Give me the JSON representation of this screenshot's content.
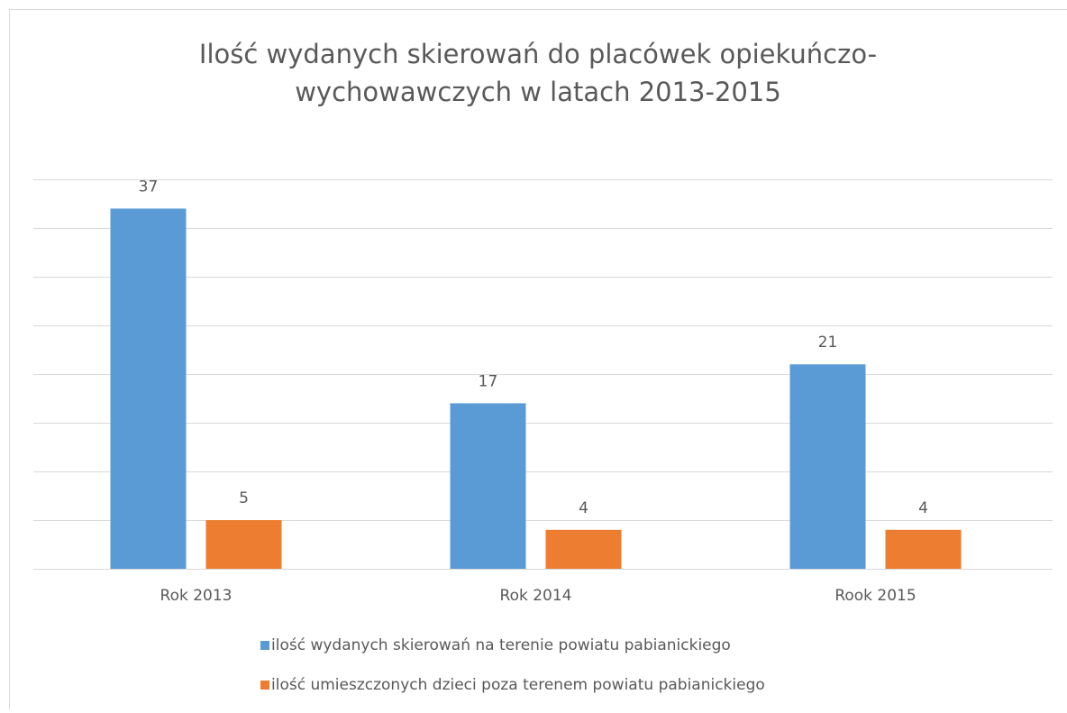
{
  "chart_data": {
    "type": "bar",
    "title": [
      "Ilość wydanych skierowań do placówek opiekuńczo-",
      "wychowawczych w latach 2013-2015"
    ],
    "categories": [
      "Rok 2013",
      "Rok 2014",
      "Rook 2015"
    ],
    "series": [
      {
        "name": "ilość wydanych skierowań na terenie powiatu pabianickiego",
        "color": "#5b9bd5",
        "values": [
          37,
          17,
          21
        ]
      },
      {
        "name": "ilość umieszczonych dzieci poza terenem powiatu pabianickiego",
        "color": "#ed7d31",
        "values": [
          5,
          4,
          4
        ]
      }
    ],
    "ylim": [
      0,
      40
    ],
    "yticks": [
      0,
      5,
      10,
      15,
      20,
      25,
      30,
      35,
      40
    ],
    "grid": true,
    "legend": "bottom"
  }
}
